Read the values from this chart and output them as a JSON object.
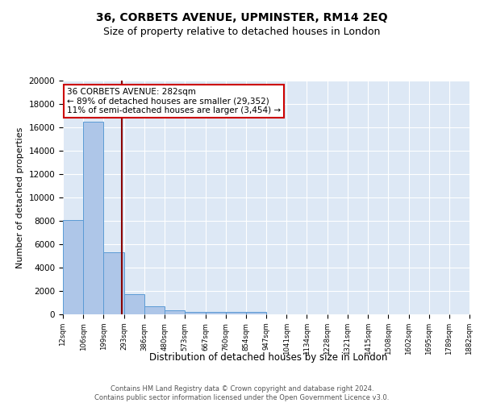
{
  "title": "36, CORBETS AVENUE, UPMINSTER, RM14 2EQ",
  "subtitle": "Size of property relative to detached houses in London",
  "xlabel": "Distribution of detached houses by size in London",
  "ylabel": "Number of detached properties",
  "bar_values": [
    8100,
    16500,
    5300,
    1750,
    700,
    320,
    230,
    200,
    175,
    175,
    0,
    0,
    0,
    0,
    0,
    0,
    0,
    0,
    0,
    0
  ],
  "bin_edges": [
    12,
    106,
    199,
    293,
    386,
    480,
    573,
    667,
    760,
    854,
    947,
    1041,
    1134,
    1228,
    1321,
    1415,
    1508,
    1602,
    1695,
    1789,
    1882
  ],
  "tick_labels": [
    "12sqm",
    "106sqm",
    "199sqm",
    "293sqm",
    "386sqm",
    "480sqm",
    "573sqm",
    "667sqm",
    "760sqm",
    "854sqm",
    "947sqm",
    "1041sqm",
    "1134sqm",
    "1228sqm",
    "1321sqm",
    "1415sqm",
    "1508sqm",
    "1602sqm",
    "1695sqm",
    "1789sqm",
    "1882sqm"
  ],
  "bar_color": "#aec6e8",
  "bar_edge_color": "#5b9bd5",
  "vline_x": 282,
  "vline_color": "#8b0000",
  "annotation_line1": "36 CORBETS AVENUE: 282sqm",
  "annotation_line2": "← 89% of detached houses are smaller (29,352)",
  "annotation_line3": "11% of semi-detached houses are larger (3,454) →",
  "annotation_box_color": "#ffffff",
  "annotation_box_edge": "#cc0000",
  "ylim": [
    0,
    20000
  ],
  "yticks": [
    0,
    2000,
    4000,
    6000,
    8000,
    10000,
    12000,
    14000,
    16000,
    18000,
    20000
  ],
  "bg_color": "#dde8f5",
  "footnote": "Contains HM Land Registry data © Crown copyright and database right 2024.\nContains public sector information licensed under the Open Government Licence v3.0.",
  "title_fontsize": 10,
  "subtitle_fontsize": 9
}
